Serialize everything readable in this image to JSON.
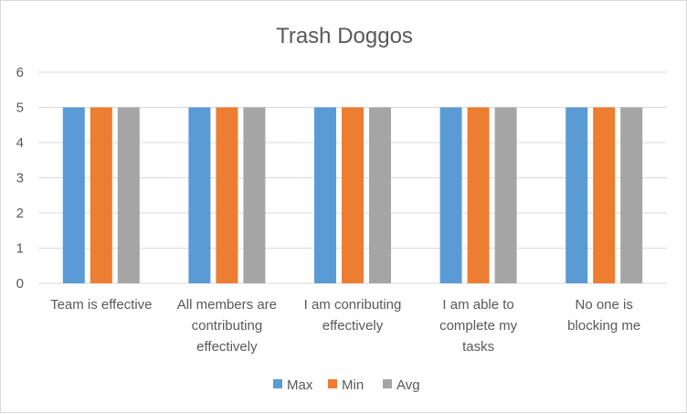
{
  "chart_data": {
    "type": "bar",
    "title": "Trash Doggos",
    "categories": [
      [
        "Team is effective"
      ],
      [
        "All members are",
        "contributing",
        "effectively"
      ],
      [
        "I am conributing",
        "effectively"
      ],
      [
        "I am able to",
        "complete my",
        "tasks"
      ],
      [
        "No one is",
        "blocking me"
      ]
    ],
    "series": [
      {
        "name": "Max",
        "color": "#5b9bd5",
        "values": [
          5,
          5,
          5,
          5,
          5
        ]
      },
      {
        "name": "Min",
        "color": "#ed7d31",
        "values": [
          5,
          5,
          5,
          5,
          5
        ]
      },
      {
        "name": "Avg",
        "color": "#a5a5a5",
        "values": [
          5,
          5,
          5,
          5,
          5
        ]
      }
    ],
    "ylim": [
      0,
      6
    ],
    "yticks": [
      0,
      1,
      2,
      3,
      4,
      5,
      6
    ],
    "grid": true,
    "legend_position": "bottom"
  }
}
